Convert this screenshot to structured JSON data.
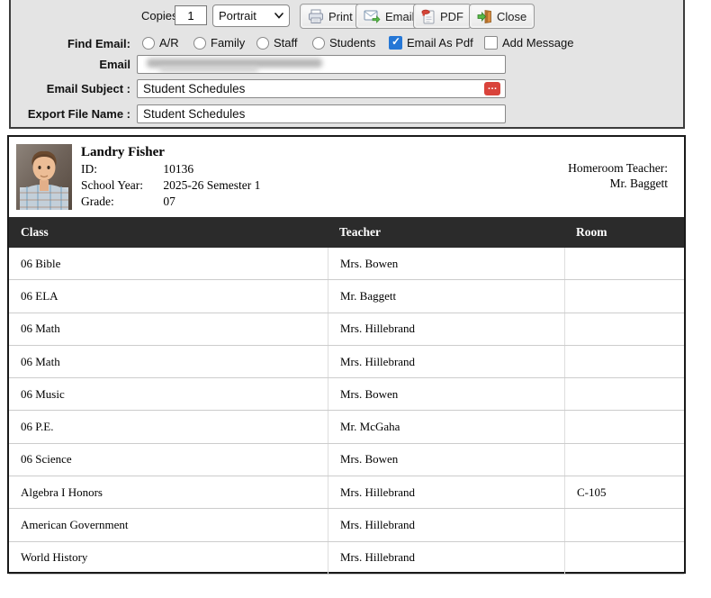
{
  "toolbar": {
    "copies_label": "Copies",
    "copies_value": "1",
    "orientation_value": "Portrait",
    "buttons": [
      {
        "label": "Print",
        "icon": "printer-icon"
      },
      {
        "label": "Email",
        "icon": "envelope-icon"
      },
      {
        "label": "PDF",
        "icon": "pdf-icon"
      },
      {
        "label": "Close",
        "icon": "exit-door-icon"
      }
    ]
  },
  "email_form": {
    "find_email_label": "Find Email:",
    "radios": [
      {
        "label": "A/R",
        "checked": false
      },
      {
        "label": "Family",
        "checked": false
      },
      {
        "label": "Staff",
        "checked": false
      },
      {
        "label": "Students",
        "checked": false
      }
    ],
    "checkboxes": [
      {
        "label": "Email As Pdf",
        "checked": true
      },
      {
        "label": "Add Message",
        "checked": false
      }
    ],
    "email_label": "Email",
    "email_redacted": true,
    "email_subject_label": "Email Subject :",
    "email_subject_value": "Student Schedules",
    "subject_more_button": "…",
    "export_label": "Export File Name :",
    "export_value": "Student Schedules"
  },
  "report": {
    "student": {
      "name": "Landry Fisher",
      "fields": [
        {
          "label": "ID:",
          "value": "10136"
        },
        {
          "label": "School Year:",
          "value": "2025-26 Semester 1"
        },
        {
          "label": "Grade:",
          "value": "07"
        }
      ],
      "homeroom_label": "Homeroom Teacher:",
      "homeroom_value": "Mr. Baggett"
    },
    "table": {
      "columns": [
        "Class",
        "Teacher",
        "Room"
      ],
      "rows": [
        [
          "06 Bible",
          "Mrs. Bowen",
          ""
        ],
        [
          "06 ELA",
          "Mr. Baggett",
          ""
        ],
        [
          "06 Math",
          "Mrs. Hillebrand",
          ""
        ],
        [
          "06 Math",
          "Mrs. Hillebrand",
          ""
        ],
        [
          "06 Music",
          "Mrs. Bowen",
          ""
        ],
        [
          "06 P.E.",
          "Mr. McGaha",
          ""
        ],
        [
          "06 Science",
          "Mrs. Bowen",
          ""
        ],
        [
          "Algebra I Honors",
          "Mrs. Hillebrand",
          "C-105"
        ],
        [
          "American Government",
          "Mrs. Hillebrand",
          ""
        ],
        [
          "World History",
          "Mrs. Hillebrand",
          ""
        ]
      ]
    }
  },
  "colors": {
    "panel_bg": "#e4e4e4",
    "checkbox_accent": "#2577d6",
    "subject_button_red": "#d9433b",
    "table_header_bg": "#2b2b2b"
  }
}
